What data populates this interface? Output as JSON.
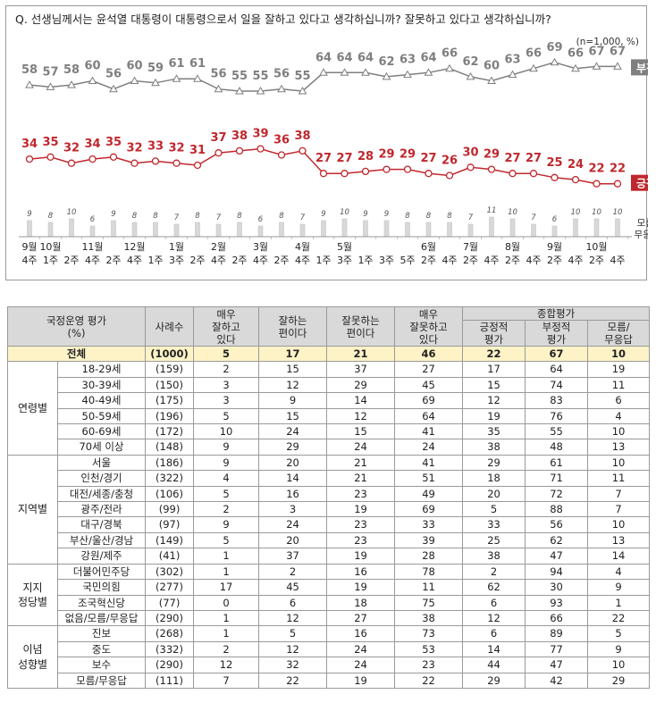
{
  "question": "Q. 선생님께서는 윤석열 대통령이 대통령으로서 일을 잘하고 있다고 생각하십니까? 잘못하고 있다고 생각하십니까?",
  "note": "(n=1,000, %)",
  "chart_data": {
    "type": "line",
    "x": [
      "9월 4주",
      "10월 1주",
      "10월 2주",
      "10월 4주",
      "11월 2주",
      "11월 4주",
      "12월 1주",
      "12월 3주",
      "1월 2주",
      "1월 4주",
      "2월 2주",
      "2월 4주",
      "3월 2주",
      "3월 4주",
      "4월 1주",
      "4월 3주",
      "5월 1주",
      "5월 3주",
      "5월 5주",
      "6월 2주",
      "6월 4주",
      "7월 2주",
      "7월 4주",
      "8월 2주",
      "8월 4주",
      "9월 2주",
      "9월 4주",
      "10월 2주",
      "10월 4주"
    ],
    "x_tick_top": [
      "9월",
      "10월",
      "",
      "11월",
      "",
      "12월",
      "",
      "1월",
      "",
      "2월",
      "",
      "3월",
      "",
      "4월",
      "",
      "5월",
      "",
      "",
      "",
      "6월",
      "",
      "7월",
      "",
      "8월",
      "",
      "9월",
      "",
      "10월",
      ""
    ],
    "x_tick_bottom": [
      "4주",
      "1주",
      "2주",
      "4주",
      "2주",
      "4주",
      "1주",
      "3주",
      "2주",
      "4주",
      "2주",
      "4주",
      "2주",
      "4주",
      "1주",
      "3주",
      "1주",
      "3주",
      "5주",
      "2주",
      "4주",
      "2주",
      "4주",
      "2주",
      "4주",
      "2주",
      "4주",
      "2주",
      "4주"
    ],
    "series": [
      {
        "name": "부정",
        "color": "#7f7f7f",
        "values": [
          58,
          57,
          58,
          60,
          56,
          60,
          59,
          61,
          61,
          56,
          55,
          55,
          56,
          55,
          64,
          64,
          64,
          62,
          63,
          64,
          66,
          62,
          60,
          63,
          66,
          69,
          66,
          67,
          67
        ]
      },
      {
        "name": "긍정",
        "color": "#c0272d",
        "values": [
          34,
          35,
          32,
          34,
          35,
          32,
          33,
          32,
          31,
          37,
          38,
          39,
          36,
          38,
          27,
          27,
          28,
          29,
          29,
          27,
          26,
          30,
          29,
          27,
          27,
          25,
          24,
          22,
          22
        ]
      },
      {
        "name": "모름/무응답",
        "color": "#bbbbbb",
        "type": "bar",
        "values": [
          9,
          8,
          10,
          6,
          9,
          8,
          8,
          7,
          8,
          7,
          8,
          6,
          8,
          7,
          9,
          10,
          9,
          9,
          8,
          8,
          8,
          7,
          11,
          10,
          7,
          6,
          10,
          10,
          10
        ]
      }
    ]
  },
  "table": {
    "headers": {
      "c0": "국정운영 평가\n(%)",
      "c2": "사례수",
      "c3": "매우\n잘하고\n있다",
      "c4": "잘하는\n편이다",
      "c5": "잘못하는\n편이다",
      "c6": "매우\n잘못하고\n있다",
      "group": "종합평가",
      "c7": "긍정적\n평가",
      "c8": "부정적\n평가",
      "c9": "모름/\n무응답"
    },
    "total": {
      "label": "전체",
      "n": "(1000)",
      "v": [
        "5",
        "17",
        "21",
        "46",
        "22",
        "67",
        "10"
      ]
    },
    "groups": [
      {
        "name": "연령별",
        "rows": [
          {
            "label": "18-29세",
            "n": "(159)",
            "v": [
              "2",
              "15",
              "37",
              "27",
              "17",
              "64",
              "19"
            ]
          },
          {
            "label": "30-39세",
            "n": "(150)",
            "v": [
              "3",
              "12",
              "29",
              "45",
              "15",
              "74",
              "11"
            ]
          },
          {
            "label": "40-49세",
            "n": "(175)",
            "v": [
              "3",
              "9",
              "14",
              "69",
              "12",
              "83",
              "6"
            ]
          },
          {
            "label": "50-59세",
            "n": "(196)",
            "v": [
              "5",
              "15",
              "12",
              "64",
              "19",
              "76",
              "4"
            ]
          },
          {
            "label": "60-69세",
            "n": "(172)",
            "v": [
              "10",
              "24",
              "15",
              "41",
              "35",
              "55",
              "10"
            ]
          },
          {
            "label": "70세 이상",
            "n": "(148)",
            "v": [
              "9",
              "29",
              "24",
              "24",
              "38",
              "48",
              "13"
            ]
          }
        ]
      },
      {
        "name": "지역별",
        "rows": [
          {
            "label": "서울",
            "n": "(186)",
            "v": [
              "9",
              "20",
              "21",
              "41",
              "29",
              "61",
              "10"
            ]
          },
          {
            "label": "인천/경기",
            "n": "(322)",
            "v": [
              "4",
              "14",
              "21",
              "51",
              "18",
              "71",
              "11"
            ]
          },
          {
            "label": "대전/세종/충청",
            "n": "(106)",
            "v": [
              "5",
              "16",
              "23",
              "49",
              "20",
              "72",
              "7"
            ]
          },
          {
            "label": "광주/전라",
            "n": "(99)",
            "v": [
              "2",
              "3",
              "19",
              "69",
              "5",
              "88",
              "7"
            ]
          },
          {
            "label": "대구/경북",
            "n": "(97)",
            "v": [
              "9",
              "24",
              "23",
              "33",
              "33",
              "56",
              "10"
            ]
          },
          {
            "label": "부산/울산/경남",
            "n": "(149)",
            "v": [
              "5",
              "20",
              "23",
              "39",
              "25",
              "62",
              "13"
            ]
          },
          {
            "label": "강원/제주",
            "n": "(41)",
            "v": [
              "1",
              "37",
              "19",
              "28",
              "38",
              "47",
              "14"
            ]
          }
        ]
      },
      {
        "name": "지지\n정당별",
        "rows": [
          {
            "label": "더불어민주당",
            "n": "(302)",
            "v": [
              "1",
              "2",
              "16",
              "78",
              "2",
              "94",
              "4"
            ]
          },
          {
            "label": "국민의힘",
            "n": "(277)",
            "v": [
              "17",
              "45",
              "19",
              "11",
              "62",
              "30",
              "9"
            ]
          },
          {
            "label": "조국혁신당",
            "n": "(77)",
            "v": [
              "0",
              "6",
              "18",
              "75",
              "6",
              "93",
              "1"
            ]
          },
          {
            "label": "없음/모름/무응답",
            "n": "(290)",
            "v": [
              "1",
              "12",
              "27",
              "38",
              "12",
              "66",
              "22"
            ]
          }
        ]
      },
      {
        "name": "이념\n성향별",
        "rows": [
          {
            "label": "진보",
            "n": "(268)",
            "v": [
              "1",
              "5",
              "16",
              "73",
              "6",
              "89",
              "5"
            ]
          },
          {
            "label": "중도",
            "n": "(332)",
            "v": [
              "2",
              "12",
              "24",
              "53",
              "14",
              "77",
              "9"
            ]
          },
          {
            "label": "보수",
            "n": "(290)",
            "v": [
              "12",
              "32",
              "24",
              "23",
              "44",
              "47",
              "10"
            ]
          },
          {
            "label": "모름/무응답",
            "n": "(111)",
            "v": [
              "7",
              "22",
              "19",
              "22",
              "29",
              "42",
              "29"
            ]
          }
        ]
      }
    ]
  }
}
